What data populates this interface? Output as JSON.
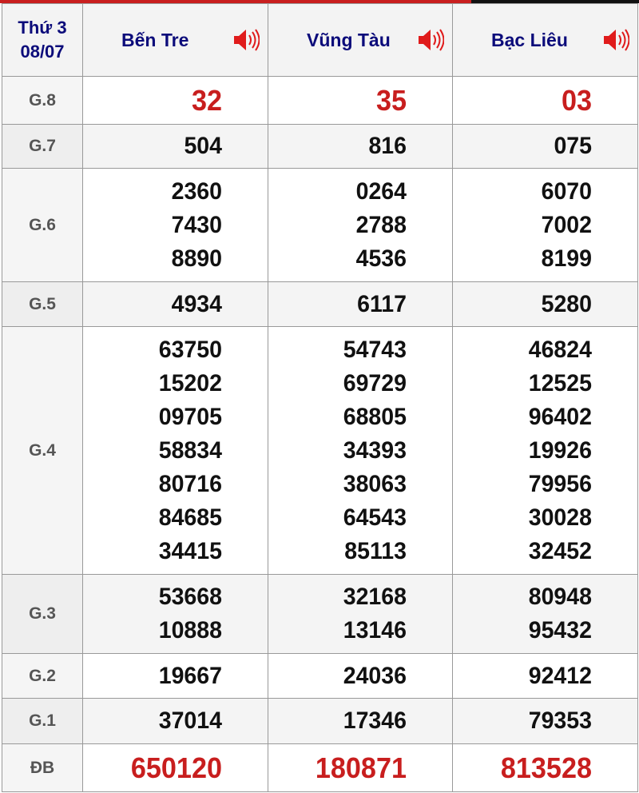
{
  "header": {
    "day": "Thứ 3",
    "date": "08/07",
    "provinces": [
      "Bến Tre",
      "Vũng Tàu",
      "Bạc Liêu"
    ],
    "icon": "speaker-icon"
  },
  "colors": {
    "accent": "#c81e1e",
    "province_text": "#0b0b7a"
  },
  "prizes": [
    {
      "label": "G.8",
      "values": [
        [
          "32"
        ],
        [
          "35"
        ],
        [
          "03"
        ]
      ]
    },
    {
      "label": "G.7",
      "values": [
        [
          "504"
        ],
        [
          "816"
        ],
        [
          "075"
        ]
      ]
    },
    {
      "label": "G.6",
      "values": [
        [
          "2360",
          "7430",
          "8890"
        ],
        [
          "0264",
          "2788",
          "4536"
        ],
        [
          "6070",
          "7002",
          "8199"
        ]
      ]
    },
    {
      "label": "G.5",
      "values": [
        [
          "4934"
        ],
        [
          "6117"
        ],
        [
          "5280"
        ]
      ]
    },
    {
      "label": "G.4",
      "values": [
        [
          "63750",
          "15202",
          "09705",
          "58834",
          "80716",
          "84685",
          "34415"
        ],
        [
          "54743",
          "69729",
          "68805",
          "34393",
          "38063",
          "64543",
          "85113"
        ],
        [
          "46824",
          "12525",
          "96402",
          "19926",
          "79956",
          "30028",
          "32452"
        ]
      ]
    },
    {
      "label": "G.3",
      "values": [
        [
          "53668",
          "10888"
        ],
        [
          "32168",
          "13146"
        ],
        [
          "80948",
          "95432"
        ]
      ]
    },
    {
      "label": "G.2",
      "values": [
        [
          "19667"
        ],
        [
          "24036"
        ],
        [
          "92412"
        ]
      ]
    },
    {
      "label": "G.1",
      "values": [
        [
          "37014"
        ],
        [
          "17346"
        ],
        [
          "79353"
        ]
      ]
    },
    {
      "label": "ĐB",
      "values": [
        [
          "650120"
        ],
        [
          "180871"
        ],
        [
          "813528"
        ]
      ]
    }
  ]
}
